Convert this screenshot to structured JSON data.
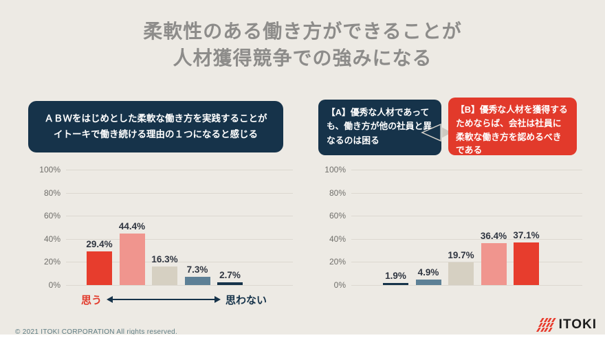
{
  "slide": {
    "title_lines": [
      "柔軟性のある働き方ができることが",
      "人材獲得競争での強みになる"
    ]
  },
  "left_section": {
    "callout_lines": [
      "ＡＢＷをはじめとした柔軟な働き方を実践することが",
      "イトーキで働き続ける理由の１つになると感じる"
    ],
    "axis_left_label": "思う",
    "axis_right_label": "思わない"
  },
  "right_section": {
    "callout_a_text": "【A】優秀な人材であっても、働き方が他の社員と異なるのは困る",
    "callout_b_text": "【B】優秀な人材を獲得するためならば、会社は社員に柔軟な働き方を認めるべきである"
  },
  "chart_data": [
    {
      "type": "bar",
      "title": "ＡＢＷをはじめとした柔軟な働き方を実践することがイトーキで働き続ける理由の１つになると感じる",
      "values": [
        29.4,
        44.4,
        16.3,
        7.3,
        2.7
      ],
      "value_labels": [
        "29.4%",
        "44.4%",
        "16.3%",
        "7.3%",
        "2.7%"
      ],
      "bar_colors": [
        "#e73d2d",
        "#f0958e",
        "#d6d0c2",
        "#5d8096",
        "#16334a"
      ],
      "ylim": [
        0,
        100
      ],
      "ytick_labels": [
        "100%",
        "80%",
        "60%",
        "40%",
        "20%",
        "0%"
      ],
      "grid": true,
      "legend": "none",
      "x_axis_annotation": {
        "left": "思う",
        "right": "思わない"
      }
    },
    {
      "type": "bar",
      "title": "【A】優秀な人材であっても、働き方が他の社員と異なるのは困る ／ 【B】優秀な人材を獲得するためならば、会社は社員に柔軟な働き方を認めるべきである",
      "values": [
        1.9,
        4.9,
        19.7,
        36.4,
        37.1
      ],
      "value_labels": [
        "1.9%",
        "4.9%",
        "19.7%",
        "36.4%",
        "37.1%"
      ],
      "bar_colors": [
        "#16334a",
        "#5d8096",
        "#d6d0c2",
        "#f0958e",
        "#e73d2d"
      ],
      "ylim": [
        0,
        100
      ],
      "ytick_labels": [
        "100%",
        "80%",
        "60%",
        "40%",
        "20%",
        "0%"
      ],
      "grid": true,
      "legend": "none"
    }
  ],
  "footer": {
    "copyright": "© 2021 ITOKI CORPORATION  All rights reserved.",
    "logo_text": "ITOKI"
  },
  "colors": {
    "background": "#edeae4",
    "navy": "#16334a",
    "red": "#e73d2d",
    "pink": "#f0958e",
    "beige": "#d6d0c2",
    "steel_blue": "#5d8096",
    "title_gray": "#8d8c8a",
    "gridline": "#dcd8d0",
    "copyright_teal": "#5e7c83"
  }
}
